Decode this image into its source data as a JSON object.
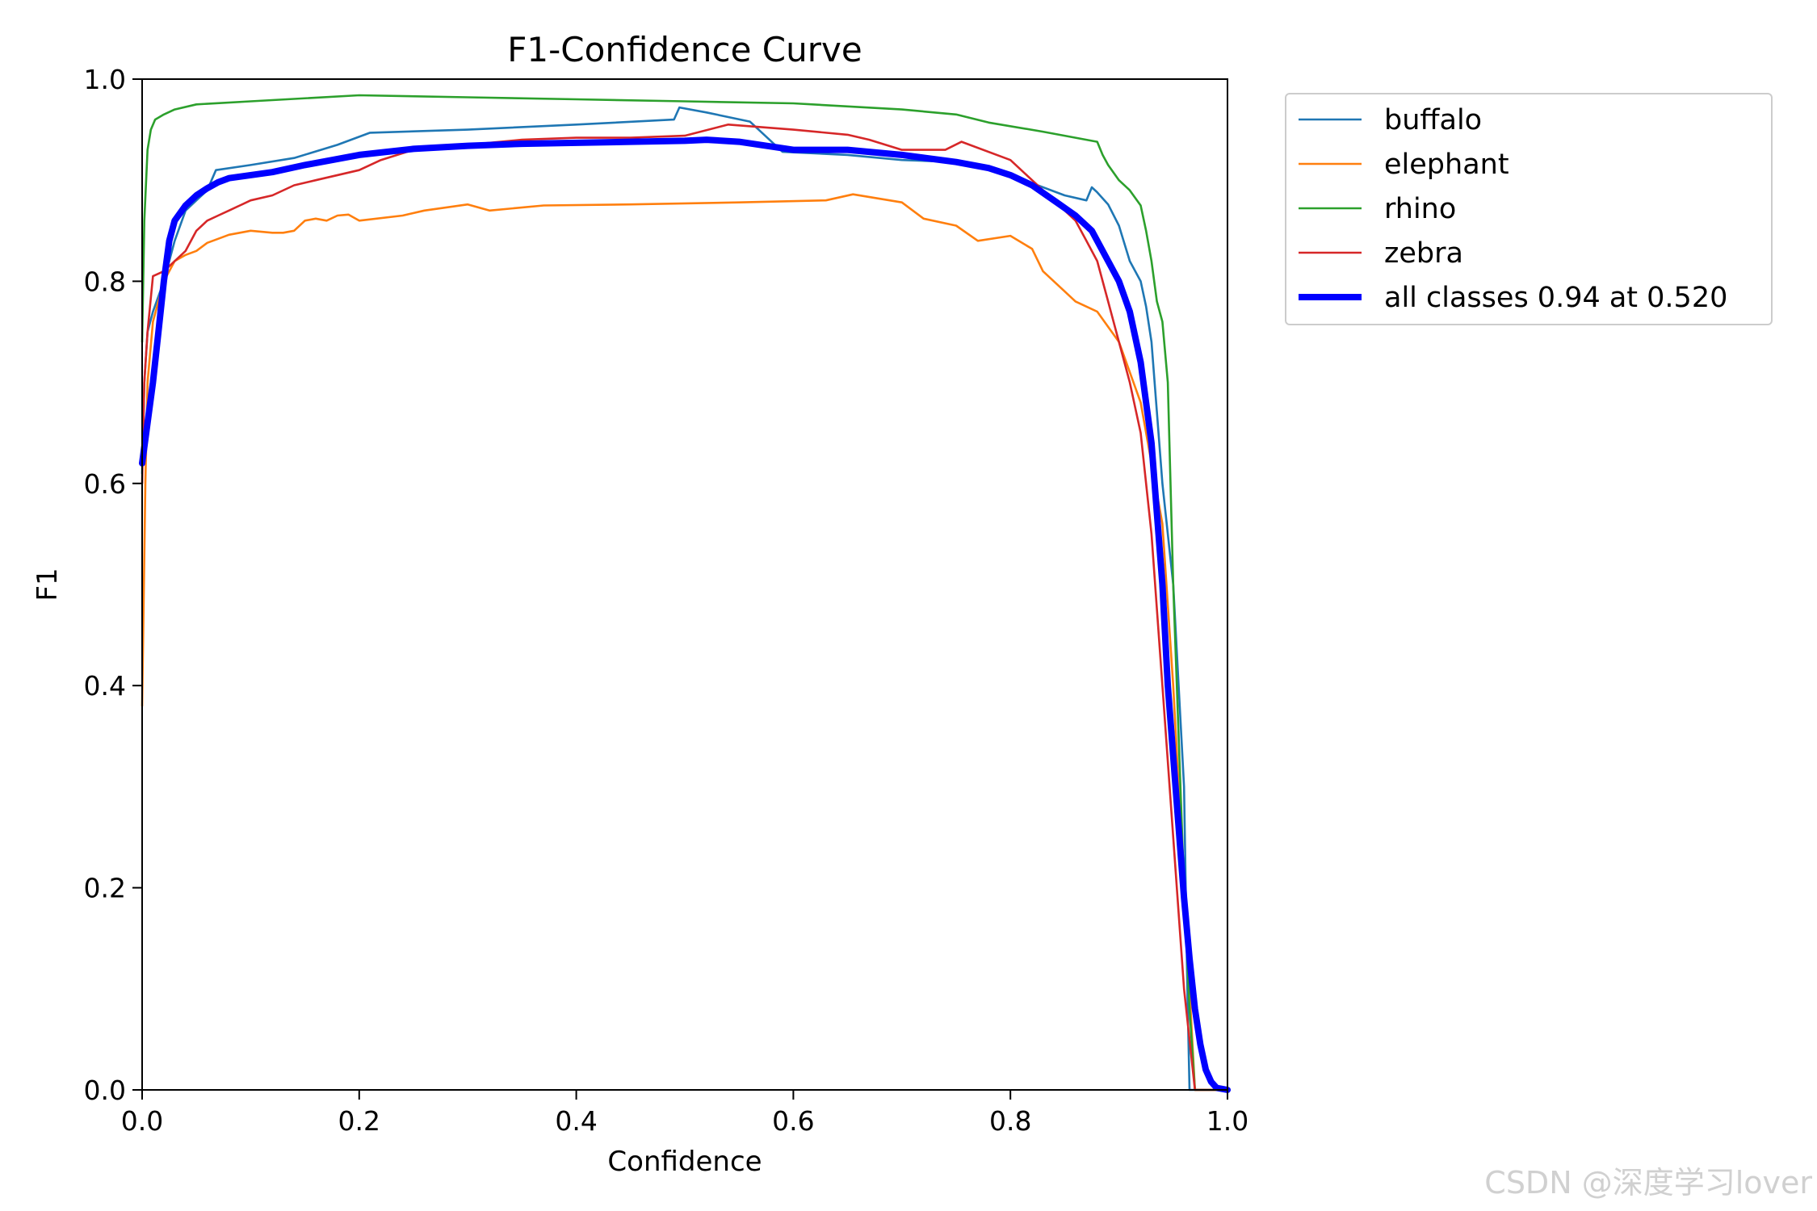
{
  "watermark": "CSDN @深度学习lover",
  "chart_data": {
    "type": "line",
    "title": "F1-Confidence Curve",
    "xlabel": "Confidence",
    "ylabel": "F1",
    "xlim": [
      0.0,
      1.0
    ],
    "ylim": [
      0.0,
      1.0
    ],
    "xticks": [
      0.0,
      0.2,
      0.4,
      0.6,
      0.8,
      1.0
    ],
    "yticks": [
      0.0,
      0.2,
      0.4,
      0.6,
      0.8,
      1.0
    ],
    "xtick_labels": [
      "0.0",
      "0.2",
      "0.4",
      "0.6",
      "0.8",
      "1.0"
    ],
    "ytick_labels": [
      "0.0",
      "0.2",
      "0.4",
      "0.6",
      "0.8",
      "1.0"
    ],
    "grid": false,
    "legend_position": "outside-right-top",
    "series": [
      {
        "name": "buffalo",
        "color": "#1f77b4",
        "width": "thin",
        "x": [
          0.0,
          0.002,
          0.005,
          0.01,
          0.02,
          0.03,
          0.04,
          0.05,
          0.06,
          0.068,
          0.1,
          0.14,
          0.18,
          0.21,
          0.3,
          0.4,
          0.49,
          0.495,
          0.52,
          0.56,
          0.59,
          0.65,
          0.7,
          0.75,
          0.8,
          0.85,
          0.87,
          0.875,
          0.88,
          0.89,
          0.9,
          0.91,
          0.92,
          0.925,
          0.93,
          0.94,
          0.95,
          0.96,
          0.963,
          0.965,
          1.0
        ],
        "y": [
          0.61,
          0.7,
          0.75,
          0.77,
          0.8,
          0.84,
          0.87,
          0.88,
          0.89,
          0.91,
          0.915,
          0.922,
          0.935,
          0.947,
          0.95,
          0.955,
          0.96,
          0.972,
          0.967,
          0.958,
          0.928,
          0.925,
          0.92,
          0.918,
          0.905,
          0.885,
          0.88,
          0.893,
          0.888,
          0.876,
          0.855,
          0.82,
          0.8,
          0.775,
          0.74,
          0.6,
          0.5,
          0.3,
          0.1,
          0.0,
          0.0
        ]
      },
      {
        "name": "elephant",
        "color": "#ff7f0e",
        "width": "thin",
        "x": [
          0.0,
          0.001,
          0.003,
          0.005,
          0.01,
          0.02,
          0.03,
          0.04,
          0.05,
          0.06,
          0.07,
          0.08,
          0.09,
          0.1,
          0.12,
          0.13,
          0.14,
          0.15,
          0.16,
          0.17,
          0.18,
          0.19,
          0.2,
          0.24,
          0.26,
          0.3,
          0.32,
          0.37,
          0.45,
          0.55,
          0.63,
          0.655,
          0.7,
          0.72,
          0.75,
          0.77,
          0.8,
          0.82,
          0.83,
          0.85,
          0.86,
          0.88,
          0.9,
          0.92,
          0.94,
          0.95,
          0.96,
          0.97,
          1.0
        ],
        "y": [
          0.38,
          0.45,
          0.6,
          0.7,
          0.76,
          0.8,
          0.82,
          0.826,
          0.83,
          0.838,
          0.842,
          0.846,
          0.848,
          0.85,
          0.848,
          0.848,
          0.85,
          0.86,
          0.862,
          0.86,
          0.865,
          0.866,
          0.86,
          0.865,
          0.87,
          0.876,
          0.87,
          0.875,
          0.876,
          0.878,
          0.88,
          0.886,
          0.878,
          0.862,
          0.855,
          0.84,
          0.845,
          0.832,
          0.81,
          0.79,
          0.78,
          0.77,
          0.74,
          0.68,
          0.56,
          0.4,
          0.2,
          0.0,
          0.0
        ]
      },
      {
        "name": "rhino",
        "color": "#2ca02c",
        "width": "thin",
        "x": [
          0.0,
          0.002,
          0.005,
          0.008,
          0.012,
          0.02,
          0.03,
          0.05,
          0.1,
          0.2,
          0.3,
          0.4,
          0.5,
          0.6,
          0.7,
          0.75,
          0.78,
          0.83,
          0.88,
          0.885,
          0.89,
          0.9,
          0.91,
          0.92,
          0.925,
          0.93,
          0.935,
          0.94,
          0.945,
          0.95,
          0.955,
          0.96,
          0.965,
          0.97,
          1.0
        ],
        "y": [
          0.74,
          0.86,
          0.93,
          0.95,
          0.96,
          0.965,
          0.97,
          0.975,
          0.978,
          0.984,
          0.982,
          0.98,
          0.978,
          0.976,
          0.97,
          0.965,
          0.957,
          0.948,
          0.938,
          0.925,
          0.915,
          0.9,
          0.89,
          0.875,
          0.85,
          0.82,
          0.78,
          0.76,
          0.7,
          0.5,
          0.35,
          0.2,
          0.08,
          0.0,
          0.0
        ]
      },
      {
        "name": "zebra",
        "color": "#d62728",
        "width": "thin",
        "x": [
          0.0,
          0.002,
          0.005,
          0.01,
          0.02,
          0.03,
          0.04,
          0.05,
          0.06,
          0.07,
          0.08,
          0.09,
          0.1,
          0.12,
          0.14,
          0.16,
          0.2,
          0.22,
          0.25,
          0.3,
          0.35,
          0.4,
          0.45,
          0.5,
          0.54,
          0.6,
          0.65,
          0.67,
          0.7,
          0.74,
          0.755,
          0.8,
          0.82,
          0.84,
          0.86,
          0.87,
          0.88,
          0.89,
          0.9,
          0.91,
          0.92,
          0.93,
          0.94,
          0.95,
          0.96,
          0.97,
          1.0
        ],
        "y": [
          0.6,
          0.7,
          0.75,
          0.805,
          0.81,
          0.82,
          0.83,
          0.85,
          0.86,
          0.865,
          0.87,
          0.875,
          0.88,
          0.885,
          0.895,
          0.9,
          0.91,
          0.92,
          0.93,
          0.935,
          0.94,
          0.942,
          0.942,
          0.944,
          0.955,
          0.95,
          0.945,
          0.94,
          0.93,
          0.93,
          0.938,
          0.92,
          0.9,
          0.88,
          0.86,
          0.84,
          0.82,
          0.78,
          0.74,
          0.7,
          0.65,
          0.55,
          0.4,
          0.25,
          0.1,
          0.0,
          0.0
        ]
      },
      {
        "name": "all classes 0.94 at 0.520",
        "color": "#0000ff",
        "width": "thick",
        "x": [
          0.0,
          0.005,
          0.01,
          0.015,
          0.02,
          0.025,
          0.03,
          0.04,
          0.05,
          0.06,
          0.07,
          0.08,
          0.1,
          0.12,
          0.15,
          0.2,
          0.25,
          0.3,
          0.35,
          0.4,
          0.45,
          0.5,
          0.52,
          0.55,
          0.6,
          0.65,
          0.7,
          0.75,
          0.78,
          0.8,
          0.82,
          0.84,
          0.86,
          0.875,
          0.89,
          0.9,
          0.91,
          0.92,
          0.93,
          0.94,
          0.945,
          0.95,
          0.955,
          0.96,
          0.965,
          0.97,
          0.975,
          0.98,
          0.985,
          0.99,
          1.0
        ],
        "y": [
          0.62,
          0.66,
          0.7,
          0.75,
          0.8,
          0.84,
          0.86,
          0.875,
          0.885,
          0.892,
          0.898,
          0.902,
          0.905,
          0.908,
          0.915,
          0.925,
          0.931,
          0.934,
          0.936,
          0.937,
          0.938,
          0.939,
          0.94,
          0.938,
          0.93,
          0.93,
          0.925,
          0.918,
          0.912,
          0.905,
          0.895,
          0.88,
          0.865,
          0.85,
          0.82,
          0.8,
          0.77,
          0.72,
          0.64,
          0.5,
          0.4,
          0.33,
          0.26,
          0.19,
          0.13,
          0.08,
          0.045,
          0.02,
          0.008,
          0.002,
          0.0
        ]
      }
    ]
  }
}
